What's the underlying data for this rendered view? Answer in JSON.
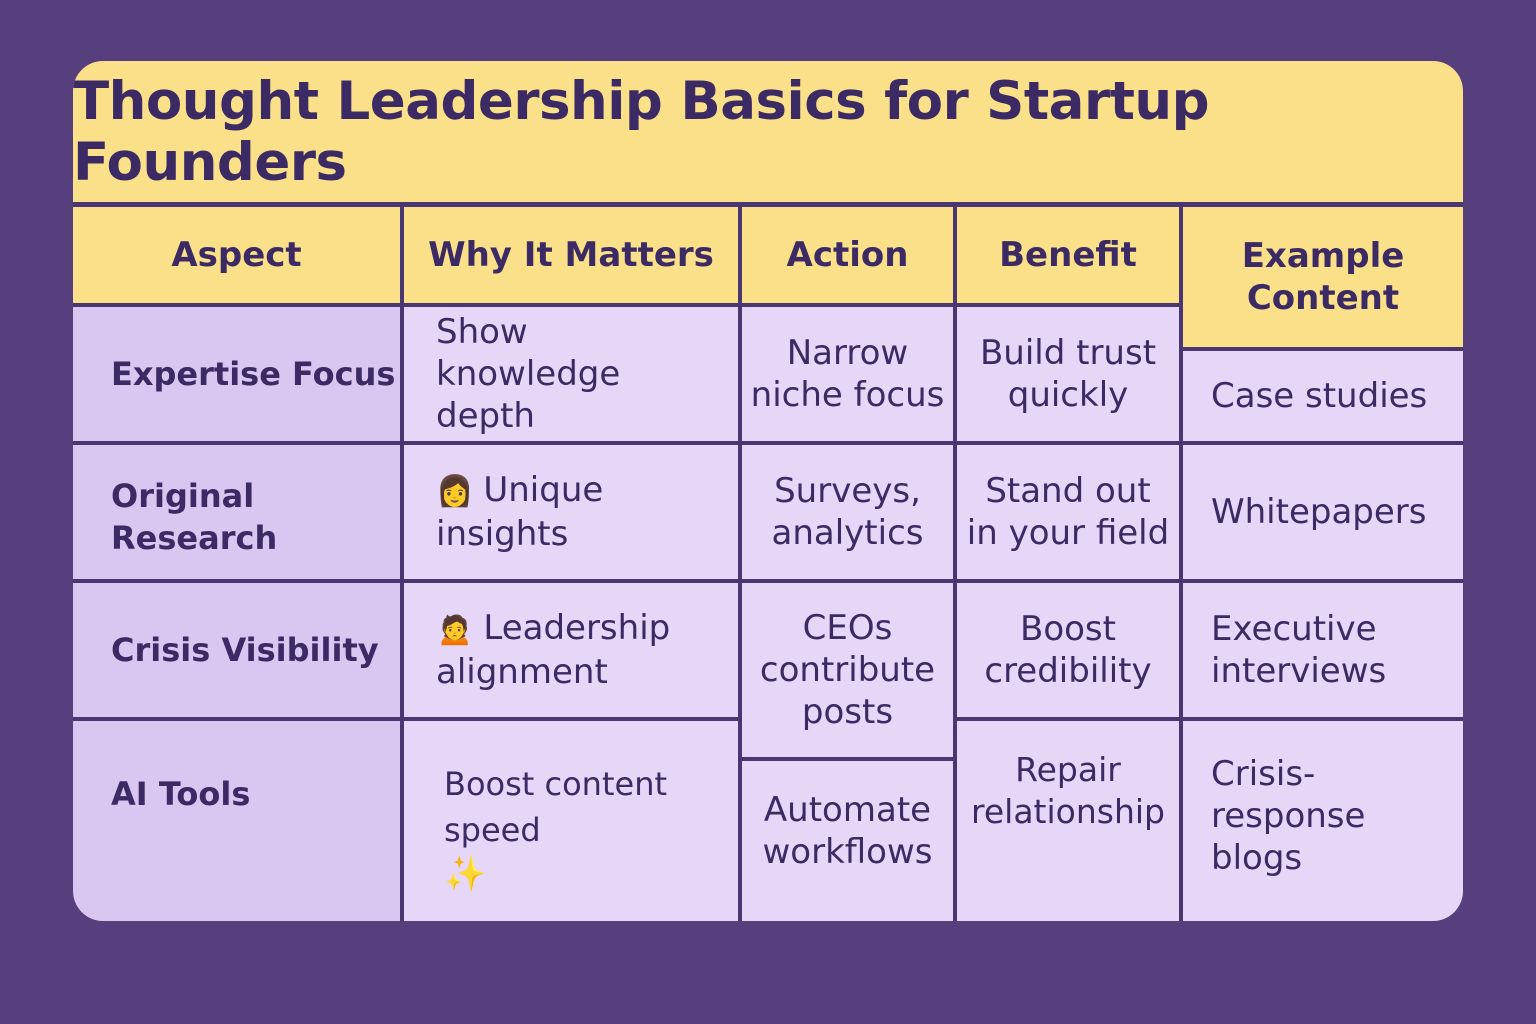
{
  "title": "Thought Leadership Basics for Startup Founders",
  "headers": {
    "aspect": "Aspect",
    "why": "Why It Matters",
    "action": "Action",
    "benefit": "Benefit",
    "example": "Example Content"
  },
  "rows": [
    {
      "aspect": "Expertise Focus",
      "why": "Show knowledge depth",
      "action": "Narrow niche focus",
      "benefit": "Build trust quickly",
      "example": "Case studies"
    },
    {
      "aspect": "Original Research",
      "why_icon": "woman-icon",
      "why": "Unique insights",
      "action": "Surveys, analytics",
      "benefit": "Stand out in your field",
      "example": "Whitepapers"
    },
    {
      "aspect": "Crisis Visibility",
      "why_icon": "person-icon",
      "why": "Leadership alignment",
      "action": "CEOs contribute posts",
      "benefit": "Boost credibility",
      "example": "Executive interviews"
    },
    {
      "aspect": "AI Tools",
      "why": "Boost content speed",
      "why_icon": "sparkles-icon",
      "action": "Automate workflows",
      "benefit": "Repair relationship",
      "example": "Crisis-response blogs"
    }
  ],
  "colors": {
    "background": "#573f7d",
    "header": "#fbe08a",
    "cell": "#e6d6f7",
    "text": "#3b2a63"
  }
}
